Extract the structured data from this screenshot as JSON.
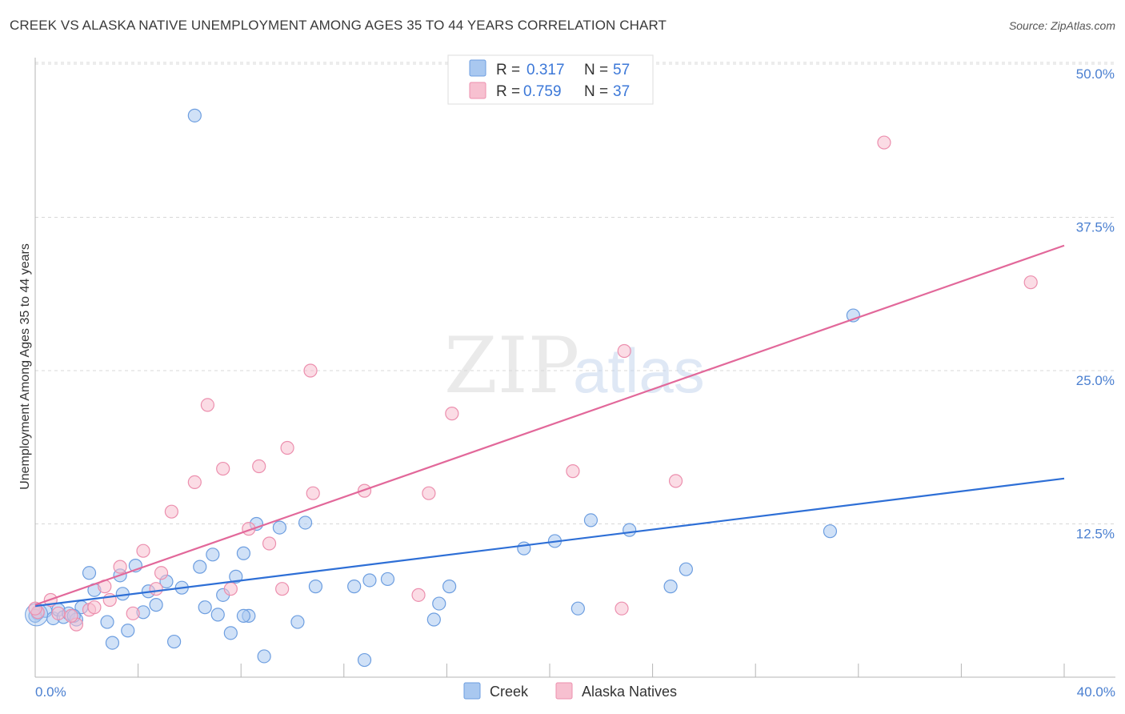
{
  "title": "CREEK VS ALASKA NATIVE UNEMPLOYMENT AMONG AGES 35 TO 44 YEARS CORRELATION CHART",
  "source": "Source: ZipAtlas.com",
  "watermark": {
    "zip": "ZIP",
    "atlas": "atlas"
  },
  "colors": {
    "creek_fill": "#a9c8f0",
    "creek_stroke": "#6d9ee0",
    "creek_line": "#2e6fd6",
    "alaska_fill": "#f7c0d0",
    "alaska_stroke": "#ec8fae",
    "alaska_line": "#e2689a",
    "tick": "#4a7fd0",
    "grid": "#d8d8d8"
  },
  "legend": {
    "r_label": "R =",
    "n_label": "N =",
    "creek": {
      "r": "0.317",
      "n": "57"
    },
    "alaska": {
      "r": "0.759",
      "n": "37"
    }
  },
  "chart_data": {
    "type": "scatter",
    "title": "CREEK VS ALASKA NATIVE UNEMPLOYMENT AMONG AGES 35 TO 44 YEARS CORRELATION CHART",
    "xlabel": "",
    "ylabel": "Unemployment Among Ages 35 to 44 years",
    "xlim": [
      0,
      40
    ],
    "ylim": [
      0,
      50
    ],
    "x_tick_labels": [
      "0.0%",
      "40.0%"
    ],
    "y_ticks": [
      12.5,
      25.0,
      37.5,
      50.0
    ],
    "y_tick_labels": [
      "12.5%",
      "25.0%",
      "37.5%",
      "50.0%"
    ],
    "series": [
      {
        "name": "Creek",
        "r": 0.317,
        "n": 57,
        "trend": [
          [
            0,
            5.8
          ],
          [
            40,
            16.2
          ]
        ],
        "points": [
          [
            0.1,
            5.2
          ],
          [
            0.4,
            5.4
          ],
          [
            0.7,
            4.8
          ],
          [
            0.9,
            5.5
          ],
          [
            1.1,
            4.9
          ],
          [
            1.3,
            5.2
          ],
          [
            1.6,
            4.7
          ],
          [
            1.8,
            5.7
          ],
          [
            2.1,
            8.5
          ],
          [
            2.3,
            7.1
          ],
          [
            2.8,
            4.5
          ],
          [
            3.0,
            2.8
          ],
          [
            3.3,
            8.3
          ],
          [
            3.6,
            3.8
          ],
          [
            3.9,
            9.1
          ],
          [
            4.2,
            5.3
          ],
          [
            4.4,
            7.0
          ],
          [
            4.7,
            5.9
          ],
          [
            5.1,
            7.8
          ],
          [
            5.4,
            2.9
          ],
          [
            5.7,
            7.3
          ],
          [
            6.4,
            9.0
          ],
          [
            6.6,
            5.7
          ],
          [
            6.9,
            10.0
          ],
          [
            7.1,
            5.1
          ],
          [
            7.3,
            6.7
          ],
          [
            7.6,
            3.6
          ],
          [
            7.8,
            8.2
          ],
          [
            8.1,
            10.1
          ],
          [
            8.3,
            5.0
          ],
          [
            8.6,
            12.5
          ],
          [
            8.9,
            1.7
          ],
          [
            9.5,
            12.2
          ],
          [
            10.2,
            4.5
          ],
          [
            10.5,
            12.6
          ],
          [
            10.9,
            7.4
          ],
          [
            12.4,
            7.4
          ],
          [
            12.8,
            1.4
          ],
          [
            13.0,
            7.9
          ],
          [
            13.7,
            8.0
          ],
          [
            15.5,
            4.7
          ],
          [
            15.7,
            6.0
          ],
          [
            16.1,
            7.4
          ],
          [
            19.0,
            10.5
          ],
          [
            20.2,
            11.1
          ],
          [
            21.1,
            5.6
          ],
          [
            21.6,
            12.8
          ],
          [
            23.1,
            12.0
          ],
          [
            24.7,
            7.4
          ],
          [
            25.3,
            8.8
          ],
          [
            30.9,
            11.9
          ],
          [
            31.8,
            29.5
          ],
          [
            6.2,
            45.8
          ],
          [
            0.0,
            5.0
          ],
          [
            3.4,
            6.8
          ],
          [
            1.5,
            5.0
          ],
          [
            8.1,
            5.0
          ]
        ]
      },
      {
        "name": "Alaska Natives",
        "r": 0.759,
        "n": 37,
        "trend": [
          [
            0,
            5.9
          ],
          [
            40,
            35.2
          ]
        ],
        "points": [
          [
            0.1,
            5.3
          ],
          [
            0.6,
            6.3
          ],
          [
            0.9,
            5.2
          ],
          [
            1.6,
            4.3
          ],
          [
            2.1,
            5.5
          ],
          [
            2.3,
            5.7
          ],
          [
            2.7,
            7.4
          ],
          [
            2.9,
            6.3
          ],
          [
            3.3,
            9.0
          ],
          [
            3.8,
            5.2
          ],
          [
            4.2,
            10.3
          ],
          [
            4.7,
            7.2
          ],
          [
            4.9,
            8.5
          ],
          [
            5.3,
            13.5
          ],
          [
            6.2,
            15.9
          ],
          [
            6.7,
            22.2
          ],
          [
            7.3,
            17.0
          ],
          [
            7.6,
            7.2
          ],
          [
            8.3,
            12.1
          ],
          [
            8.7,
            17.2
          ],
          [
            9.1,
            10.9
          ],
          [
            9.6,
            7.2
          ],
          [
            9.8,
            18.7
          ],
          [
            10.7,
            25.0
          ],
          [
            10.8,
            15.0
          ],
          [
            12.8,
            15.2
          ],
          [
            14.9,
            6.7
          ],
          [
            15.3,
            15.0
          ],
          [
            16.2,
            21.5
          ],
          [
            20.9,
            16.8
          ],
          [
            22.8,
            5.6
          ],
          [
            22.9,
            26.6
          ],
          [
            24.9,
            16.0
          ],
          [
            33.0,
            43.6
          ],
          [
            38.7,
            32.2
          ],
          [
            0.0,
            5.6
          ],
          [
            1.4,
            5.0
          ]
        ]
      }
    ],
    "legend_position": "top-center"
  }
}
